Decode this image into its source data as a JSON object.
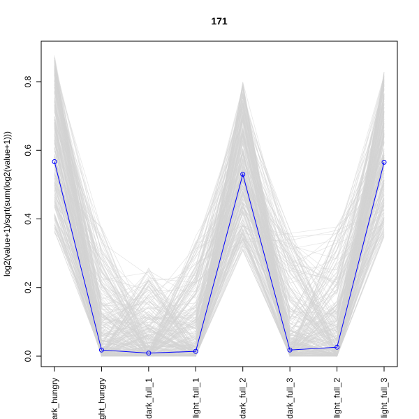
{
  "chart_data": {
    "type": "line",
    "title": "171",
    "xlabel": "",
    "ylabel": "log2(value+1)/sqrt(sum(log2(value+1)))",
    "categories": [
      "dark_hungry",
      "light_hungry",
      "dark_full_1",
      "light_full_1",
      "dark_full_2",
      "dark_full_3",
      "light_full_2",
      "light_full_3"
    ],
    "ylim": [
      0,
      0.85
    ],
    "yticks": [
      0.0,
      0.2,
      0.4,
      0.6,
      0.8
    ],
    "ytick_labels": [
      "0.0",
      "0.2",
      "0.4",
      "0.6",
      "0.8"
    ],
    "highlight_series": {
      "values": [
        0.567,
        0.018,
        0.009,
        0.014,
        0.53,
        0.018,
        0.026,
        0.565
      ],
      "color": "#0000ff"
    },
    "background_series": {
      "color": "#d3d3d3",
      "min_values": [
        0.26,
        0.0,
        0.0,
        0.0,
        0.22,
        0.0,
        0.0,
        0.26
      ],
      "max_values": [
        0.88,
        0.38,
        0.26,
        0.35,
        0.8,
        0.37,
        0.38,
        0.83
      ]
    },
    "grid": false,
    "legend": "none"
  }
}
